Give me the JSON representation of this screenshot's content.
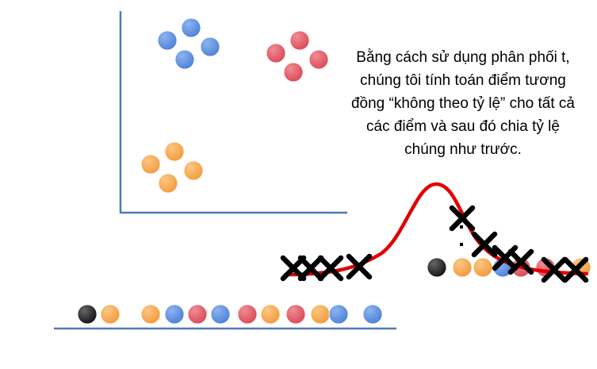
{
  "caption": "Bằng cách sử dụng phân phối t, chúng tôi tính toán điểm tương đồng “không theo tỷ lệ” cho tất cả các điểm và sau đó chia tỷ lệ chúng như trước.",
  "colors": {
    "blue": "#5B8FE0",
    "red": "#E35A66",
    "orange": "#F7A54C",
    "black": "#222222",
    "axis": "#4F79BC",
    "curve": "#E00000",
    "cross": "#000000"
  },
  "point_strip": [
    "black",
    "orange",
    "orange",
    "blue",
    "red",
    "blue",
    "red",
    "orange",
    "red",
    "orange",
    "blue",
    "blue"
  ],
  "right_strip": [
    "black",
    "orange",
    "orange",
    "blue",
    "red",
    "red",
    "orange"
  ],
  "clusters": [
    "blue",
    "red",
    "orange"
  ]
}
